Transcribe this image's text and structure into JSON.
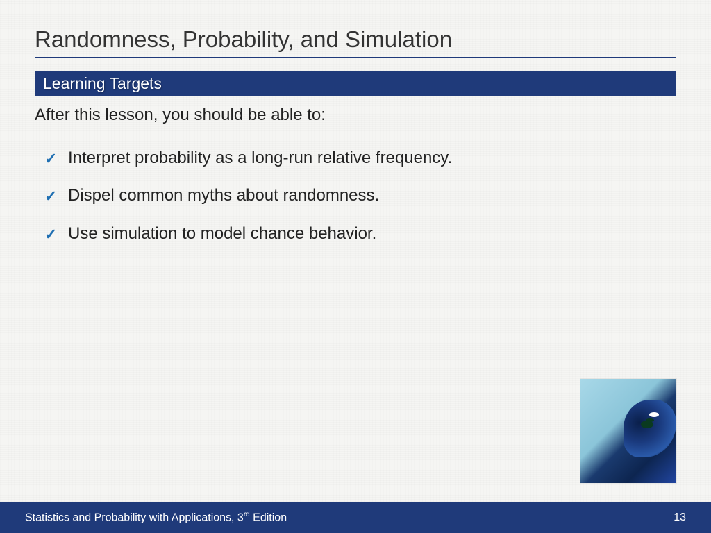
{
  "colors": {
    "background": "#f5f5f3",
    "title_text": "#333333",
    "title_underline": "#1f3a7a",
    "section_bg": "#1f3a7a",
    "section_text": "#ffffff",
    "body_text": "#222222",
    "checkmark": "#1f6fb2",
    "footer_bg": "#1f3a7a",
    "footer_text": "#ffffff"
  },
  "typography": {
    "title_fontsize": 33,
    "section_fontsize": 23,
    "body_fontsize": 24,
    "footer_fontsize": 16,
    "font_family": "Arial"
  },
  "title": "Randomness, Probability, and Simulation",
  "section_header": "Learning Targets",
  "intro": "After this lesson, you should be able to:",
  "targets": [
    "Interpret probability as a long-run relative frequency.",
    "Dispel common myths about randomness.",
    "Use simulation to model chance behavior."
  ],
  "image": {
    "alt": "peacock-photo",
    "width": 138,
    "height": 150
  },
  "footer": {
    "book": "Statistics and Probability with Applications, 3",
    "edition_suffix": "rd",
    "edition_tail": " Edition",
    "page": "13"
  }
}
